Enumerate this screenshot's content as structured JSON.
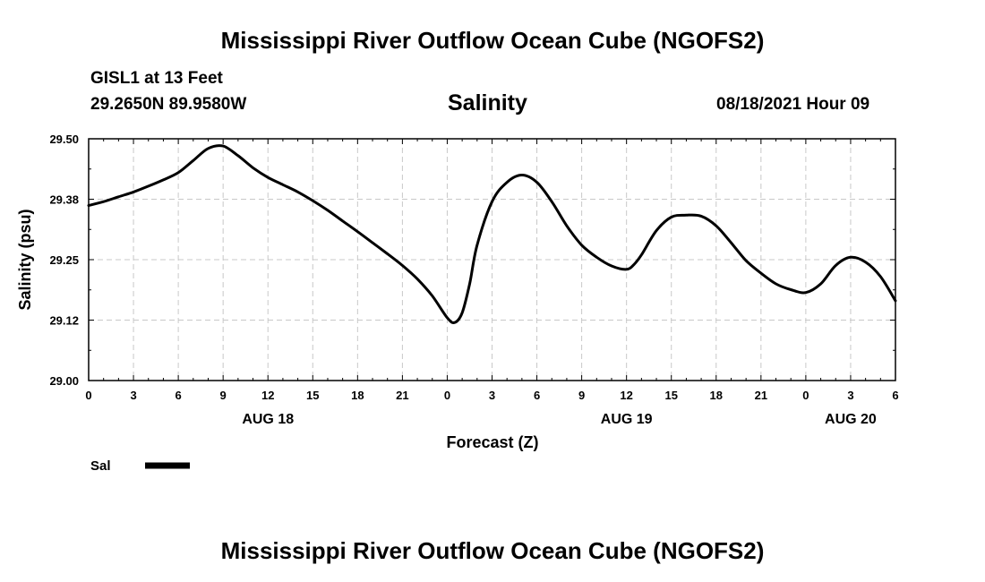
{
  "header": {
    "title_top": "Mississippi River Outflow Ocean Cube (NGOFS2)",
    "station": "GISL1 at 13 Feet",
    "coords": "29.2650N  89.9580W",
    "variable": "Salinity",
    "timestamp": "08/18/2021 Hour 09"
  },
  "footer": {
    "title_bottom": "Mississippi River Outflow Ocean Cube (NGOFS2)"
  },
  "chart_data": {
    "type": "line",
    "title": "Salinity",
    "xlabel": "Forecast (Z)",
    "ylabel": "Salinity (psu)",
    "xlim": [
      0,
      54
    ],
    "ylim": [
      29.0,
      29.5
    ],
    "grid": true,
    "y_ticks": [
      29.0,
      29.125,
      29.25,
      29.375,
      29.5
    ],
    "y_tick_labels": [
      "29.00",
      "29.12",
      "29.25",
      "29.38",
      "29.50"
    ],
    "x_ticks": [
      0,
      3,
      6,
      9,
      12,
      15,
      18,
      21,
      24,
      27,
      30,
      33,
      36,
      39,
      42,
      45,
      48,
      51,
      54
    ],
    "x_tick_labels": [
      "0",
      "3",
      "6",
      "9",
      "12",
      "15",
      "18",
      "21",
      "0",
      "3",
      "6",
      "9",
      "12",
      "15",
      "18",
      "21",
      "0",
      "3",
      "6"
    ],
    "date_labels": [
      {
        "x": 12,
        "label": "AUG 18"
      },
      {
        "x": 36,
        "label": "AUG 19"
      },
      {
        "x": 51,
        "label": "AUG 20"
      }
    ],
    "legend": {
      "position": "bottom-left",
      "entries": [
        {
          "name": "Sal"
        }
      ]
    },
    "series": [
      {
        "name": "Sal",
        "x": [
          0,
          1,
          2,
          3,
          4,
          5,
          6,
          7,
          8,
          9,
          10,
          11,
          12,
          13,
          14,
          15,
          16,
          17,
          18,
          19,
          20,
          21,
          22,
          23,
          24,
          24.5,
          25,
          25.5,
          26,
          27,
          28,
          29,
          30,
          31,
          32,
          33,
          34,
          35,
          36,
          36.5,
          37,
          38,
          39,
          40,
          41,
          42,
          43,
          44,
          45,
          46,
          47,
          48,
          49,
          50,
          51,
          52,
          53,
          54
        ],
        "values": [
          29.362,
          29.37,
          29.38,
          29.39,
          29.402,
          29.415,
          29.43,
          29.455,
          29.48,
          29.485,
          29.465,
          29.44,
          29.42,
          29.405,
          29.39,
          29.372,
          29.352,
          29.33,
          29.308,
          29.285,
          29.262,
          29.238,
          29.21,
          29.175,
          29.13,
          29.12,
          29.14,
          29.2,
          29.28,
          29.37,
          29.41,
          29.425,
          29.41,
          29.37,
          29.32,
          29.28,
          29.255,
          29.237,
          29.23,
          29.24,
          29.26,
          29.31,
          29.338,
          29.342,
          29.34,
          29.32,
          29.285,
          29.248,
          29.222,
          29.2,
          29.188,
          29.182,
          29.2,
          29.238,
          29.255,
          29.245,
          29.215,
          29.165
        ]
      }
    ]
  }
}
